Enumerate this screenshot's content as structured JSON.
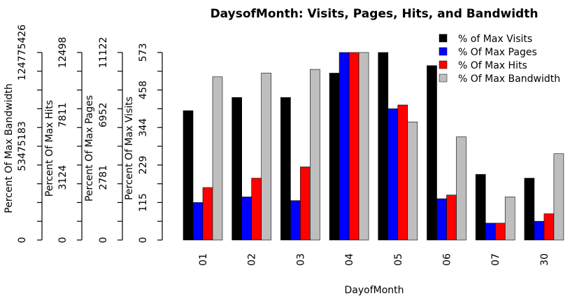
{
  "chart_data": {
    "type": "bar",
    "title": "DaysofMonth: Visits, Pages, Hits, and Bandwidth",
    "xlabel": "DayofMonth",
    "categories": [
      "01",
      "02",
      "03",
      "04",
      "05",
      "06",
      "07",
      "30"
    ],
    "series": [
      {
        "name": "% of Max Visits",
        "color": "#000000",
        "values": [
          69,
          76,
          76,
          89,
          100,
          93,
          35,
          33
        ]
      },
      {
        "name": "% Of Max Pages",
        "color": "#0000ff",
        "values": [
          20,
          23,
          21,
          100,
          70,
          22,
          9,
          10
        ]
      },
      {
        "name": "% Of Max Hits",
        "color": "#ff0000",
        "values": [
          28,
          33,
          39,
          100,
          72,
          24,
          9,
          14
        ]
      },
      {
        "name": "% Of Max Bandwidth",
        "color": "#bebebe",
        "values": [
          87,
          89,
          91,
          100,
          63,
          55,
          23,
          46
        ]
      }
    ],
    "ylim": [
      0,
      100
    ],
    "legend_position": "top-right",
    "grid": false,
    "axes": [
      {
        "label": "Percent Of Max Visits",
        "ticks": [
          "0",
          "115",
          "229",
          "344",
          "458",
          "573"
        ]
      },
      {
        "label": "Percent Of Max Pages",
        "ticks": [
          "0",
          "2781",
          "6952",
          "11122"
        ]
      },
      {
        "label": "Percent Of Max Hits",
        "ticks": [
          "0",
          "3124",
          "7811",
          "12498"
        ]
      },
      {
        "label": "Percent Of Max Bandwidth",
        "ticks": [
          "0",
          "53475183",
          "124775426"
        ]
      }
    ]
  }
}
